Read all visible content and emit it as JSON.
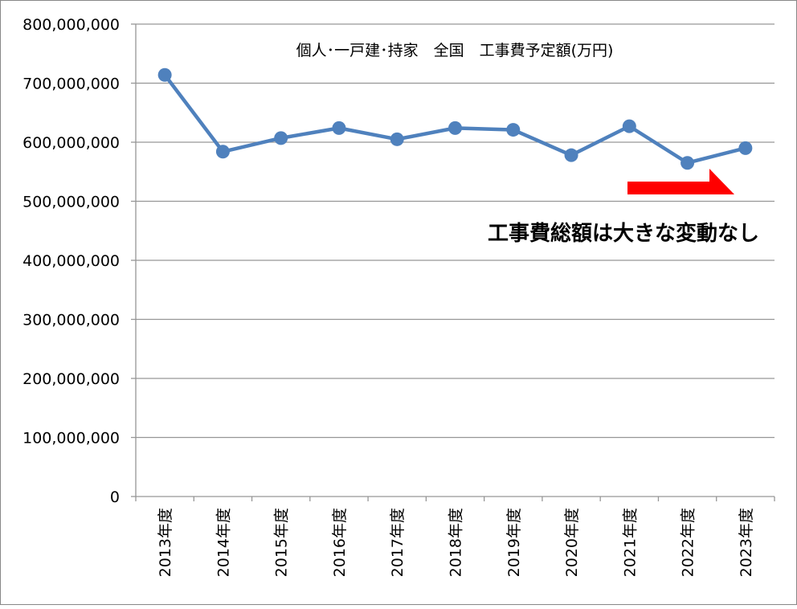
{
  "chart_data": {
    "type": "line",
    "title": "個人･一戸建･持家　全国　工事費予定額(万円)",
    "categories": [
      "2013年度",
      "2014年度",
      "2015年度",
      "2016年度",
      "2017年度",
      "2018年度",
      "2019年度",
      "2020年度",
      "2021年度",
      "2022年度",
      "2023年度"
    ],
    "series": [
      {
        "name": "工事費予定額",
        "values": [
          714000000,
          584000000,
          607000000,
          624000000,
          605000000,
          624000000,
          621000000,
          578000000,
          627000000,
          565000000,
          590000000
        ]
      }
    ],
    "ylim": [
      0,
      800000000
    ],
    "yticks": [
      "0",
      "100,000,000",
      "200,000,000",
      "300,000,000",
      "400,000,000",
      "500,000,000",
      "600,000,000",
      "700,000,000",
      "800,000,000"
    ],
    "grid": true,
    "annotation": "工事費総額は大きな変動なし",
    "colors": {
      "line": "#4f81bd",
      "arrow": "#ff0000",
      "grid": "#969696"
    }
  }
}
